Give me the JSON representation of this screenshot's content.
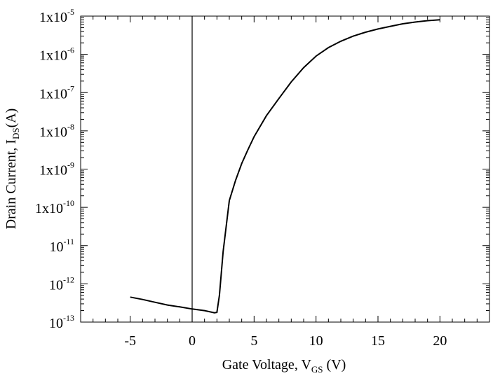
{
  "chart_data": {
    "type": "line",
    "xlabel": {
      "main": "Gate Voltage, V",
      "sub": "GS",
      "suffix": " (V)"
    },
    "ylabel": {
      "main": "Drain Current, I",
      "sub": "DS",
      "suffix": "(A)"
    },
    "xlim": [
      -9,
      24
    ],
    "ylim": [
      1e-13,
      1e-05
    ],
    "yscale": "log",
    "grid": false,
    "legend": "none",
    "x_ticks": [
      {
        "value": -5,
        "label": "-5"
      },
      {
        "value": 0,
        "label": "0"
      },
      {
        "value": 5,
        "label": "5"
      },
      {
        "value": 10,
        "label": "10"
      },
      {
        "value": 15,
        "label": "15"
      },
      {
        "value": 20,
        "label": "20"
      }
    ],
    "y_ticks": [
      {
        "value": 1e-13,
        "base": "10",
        "exp": "-13"
      },
      {
        "value": 1e-12,
        "base": "10",
        "exp": "-12"
      },
      {
        "value": 1e-11,
        "base": "10",
        "exp": "-11"
      },
      {
        "value": 1e-10,
        "base": "1x10",
        "exp": "-10"
      },
      {
        "value": 1e-09,
        "base": "1x10",
        "exp": "-9"
      },
      {
        "value": 1e-08,
        "base": "1x10",
        "exp": "-8"
      },
      {
        "value": 1e-07,
        "base": "1x10",
        "exp": "-7"
      },
      {
        "value": 1e-06,
        "base": "1x10",
        "exp": "-6"
      },
      {
        "value": 1e-05,
        "base": "1x10",
        "exp": "-5"
      }
    ],
    "reference_line_x": 0,
    "series": [
      {
        "color": "#000000",
        "x": [
          -5,
          -4,
          -3,
          -2,
          -1,
          0,
          1,
          1.8,
          2.0,
          2.2,
          2.5,
          3.0,
          3.5,
          4,
          4.5,
          5,
          6,
          7,
          8,
          9,
          10,
          11,
          12,
          13,
          14,
          15,
          16,
          17,
          18,
          19,
          20
        ],
        "y": [
          4.5e-13,
          3.9e-13,
          3.3e-13,
          2.8e-13,
          2.5e-13,
          2.2e-13,
          2e-13,
          1.75e-13,
          1.8e-13,
          5e-13,
          7e-12,
          1.5e-10,
          5e-10,
          1.4e-09,
          3.2e-09,
          7e-09,
          2.5e-08,
          7e-08,
          1.9e-07,
          4.5e-07,
          9e-07,
          1.5e-06,
          2.2e-06,
          3e-06,
          3.8e-06,
          4.6e-06,
          5.4e-06,
          6.3e-06,
          7e-06,
          7.6e-06,
          8e-06
        ]
      }
    ]
  }
}
